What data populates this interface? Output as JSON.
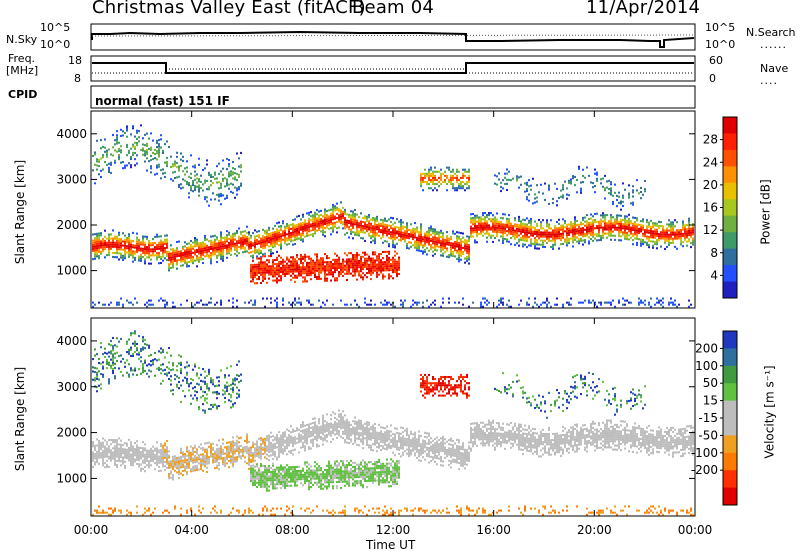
{
  "header": {
    "station": "Christmas Valley East (fitACF)",
    "beam": "Beam 04",
    "date": "11/Apr/2014"
  },
  "mode_label": "normal (fast) 151 IF",
  "panels": {
    "nsky": {
      "left_label": "N.Sky",
      "right_label": "N.Search",
      "left_ticks": [
        "10^5",
        "10^0"
      ],
      "right_ticks": [
        "10^5",
        "10^0"
      ],
      "right_dotted": "......"
    },
    "freq": {
      "left_label_1": "Freq.",
      "left_label_2": "[MHz]",
      "right_label": "Nave",
      "left_ticks": [
        "18",
        "8"
      ],
      "right_ticks": [
        "60",
        "0"
      ],
      "right_dotted": "...."
    },
    "cpid_label": "CPID"
  },
  "colors": {
    "power_scale": [
      "#2020c0",
      "#2050ff",
      "#2f6fa0",
      "#3f9a6a",
      "#6fb040",
      "#a8c820",
      "#e8c000",
      "#ff9000",
      "#ff5000",
      "#ff2000",
      "#e00000"
    ],
    "velocity_scale": [
      "#2038c0",
      "#2f6fa0",
      "#3f9a40",
      "#60c040",
      "#bdbdbd",
      "#bdbdbd",
      "#f0a020",
      "#ff7a00",
      "#ff3000",
      "#e00000"
    ]
  },
  "chart_data": [
    {
      "type": "heatmap",
      "name": "power",
      "ylabel": "Slant Range [km]",
      "y_ticks": [
        1000,
        2000,
        3000,
        4000
      ],
      "ylim": [
        180,
        4500
      ],
      "colorbar_label": "Power [dB]",
      "colorbar_ticks": [
        4,
        8,
        12,
        16,
        20,
        24,
        28
      ],
      "clim": [
        0,
        32
      ]
    },
    {
      "type": "heatmap",
      "name": "velocity",
      "ylabel": "Slant Range [km]",
      "y_ticks": [
        1000,
        2000,
        3000,
        4000
      ],
      "ylim": [
        180,
        4500
      ],
      "colorbar_label": "Velocity [m s⁻¹]",
      "colorbar_ticks": [
        "200",
        "100",
        "50",
        "15",
        "-15",
        "-50",
        "-100",
        "-200"
      ]
    }
  ],
  "x_axis": {
    "label": "Time UT",
    "ticks": [
      "00:00",
      "04:00",
      "08:00",
      "12:00",
      "16:00",
      "20:00",
      "00:00"
    ],
    "hours": [
      0,
      4,
      8,
      12,
      16,
      20,
      24
    ]
  }
}
